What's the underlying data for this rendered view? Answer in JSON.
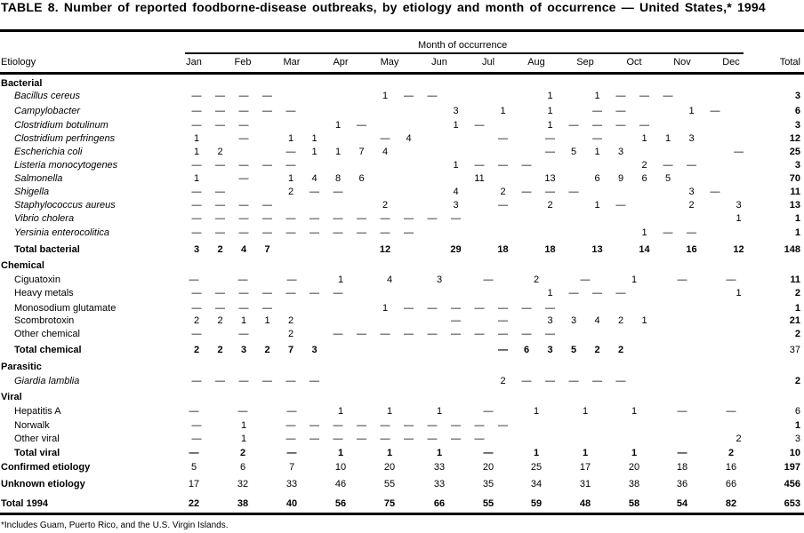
{
  "title": "TABLE 8. Number of reported foodborne-disease  outbreaks, by etiology  and month of occurrence — United States,* 1994",
  "header": {
    "group_label": "Month of occurrence",
    "etiology": "Etiology",
    "months": [
      "Jan",
      "Feb",
      "Mar",
      "Apr",
      "May",
      "Jun",
      "Jul",
      "Aug",
      "Sep",
      "Oct",
      "Nov",
      "Dec"
    ],
    "total": "Total"
  },
  "rows": [
    {
      "label": "Bacterial",
      "kind": "group"
    },
    {
      "label": "Bacillus cereus",
      "kind": "item",
      "italic": true,
      "cells": [
        [
          0,
          "—"
        ],
        [
          1,
          "—"
        ],
        [
          2,
          "—"
        ],
        [
          3,
          "—"
        ],
        [
          8,
          "1"
        ],
        [
          9,
          "—"
        ],
        [
          10,
          "—"
        ],
        [
          15,
          "1"
        ],
        [
          17,
          "1"
        ],
        [
          18,
          "—"
        ],
        [
          19,
          "—"
        ],
        [
          20,
          "—"
        ]
      ],
      "total": "3"
    },
    {
      "label": "Campylobacter",
      "kind": "item",
      "italic": true,
      "cells": [
        [
          0,
          "—"
        ],
        [
          1,
          "—"
        ],
        [
          2,
          "—"
        ],
        [
          3,
          "—"
        ],
        [
          4,
          "—"
        ],
        [
          11,
          "3"
        ],
        [
          13,
          "1"
        ],
        [
          15,
          "1"
        ],
        [
          17,
          "—"
        ],
        [
          18,
          "—"
        ],
        [
          21,
          "1"
        ],
        [
          22,
          "—"
        ]
      ],
      "total": "6"
    },
    {
      "label": "Clostridium botulinum",
      "kind": "item",
      "italic": true,
      "cells": [
        [
          0,
          "—"
        ],
        [
          1,
          "—"
        ],
        [
          2,
          "—"
        ],
        [
          6,
          "1"
        ],
        [
          7,
          "—"
        ],
        [
          11,
          "1"
        ],
        [
          12,
          "—"
        ],
        [
          15,
          "1"
        ],
        [
          16,
          "—"
        ],
        [
          17,
          "—"
        ],
        [
          18,
          "—"
        ],
        [
          19,
          "—"
        ]
      ],
      "total": "3"
    },
    {
      "label": "Clostridium perfringens",
      "kind": "item",
      "italic": true,
      "cells": [
        [
          0,
          "1"
        ],
        [
          2,
          "—"
        ],
        [
          4,
          "1"
        ],
        [
          5,
          "1"
        ],
        [
          8,
          "—"
        ],
        [
          9,
          "4"
        ],
        [
          13,
          "—"
        ],
        [
          15,
          "—"
        ],
        [
          17,
          "—"
        ],
        [
          19,
          "1"
        ],
        [
          20,
          "1"
        ],
        [
          21,
          "3"
        ]
      ],
      "total": "12"
    },
    {
      "label": "Escherichia coli",
      "kind": "item",
      "italic": true,
      "cells": [
        [
          0,
          "1"
        ],
        [
          1,
          "2"
        ],
        [
          4,
          "—"
        ],
        [
          5,
          "1"
        ],
        [
          6,
          "1"
        ],
        [
          7,
          "7"
        ],
        [
          8,
          "4"
        ],
        [
          15,
          "—"
        ],
        [
          16,
          "5"
        ],
        [
          17,
          "1"
        ],
        [
          18,
          "3"
        ],
        [
          23,
          "—"
        ]
      ],
      "total": "25"
    },
    {
      "label": "Listeria monocytogenes",
      "kind": "item",
      "italic": true,
      "cells": [
        [
          0,
          "—"
        ],
        [
          1,
          "—"
        ],
        [
          2,
          "—"
        ],
        [
          3,
          "—"
        ],
        [
          4,
          "—"
        ],
        [
          11,
          "1"
        ],
        [
          12,
          "—"
        ],
        [
          13,
          "—"
        ],
        [
          14,
          "—"
        ],
        [
          19,
          "2"
        ],
        [
          20,
          "—"
        ],
        [
          21,
          "—"
        ]
      ],
      "total": "3"
    },
    {
      "label": "Salmonella",
      "kind": "item",
      "italic": true,
      "cells": [
        [
          0,
          "1"
        ],
        [
          2,
          "—"
        ],
        [
          4,
          "1"
        ],
        [
          5,
          "4"
        ],
        [
          6,
          "8"
        ],
        [
          7,
          "6"
        ],
        [
          12,
          "11"
        ],
        [
          15,
          "13"
        ],
        [
          17,
          "6"
        ],
        [
          18,
          "9"
        ],
        [
          19,
          "6"
        ],
        [
          20,
          "5"
        ]
      ],
      "total": "70"
    },
    {
      "label": "Shigella",
      "kind": "item",
      "italic": true,
      "cells": [
        [
          0,
          "—"
        ],
        [
          1,
          "—"
        ],
        [
          4,
          "2"
        ],
        [
          5,
          "—"
        ],
        [
          6,
          "—"
        ],
        [
          11,
          "4"
        ],
        [
          13,
          "2"
        ],
        [
          14,
          "—"
        ],
        [
          15,
          "—"
        ],
        [
          16,
          "—"
        ],
        [
          21,
          "3"
        ],
        [
          22,
          "—"
        ]
      ],
      "total": "11"
    },
    {
      "label": "Staphylococcus aureus",
      "kind": "item",
      "italic": true,
      "cells": [
        [
          0,
          "—"
        ],
        [
          1,
          "—"
        ],
        [
          2,
          "—"
        ],
        [
          3,
          "—"
        ],
        [
          8,
          "2"
        ],
        [
          11,
          "3"
        ],
        [
          13,
          "—"
        ],
        [
          15,
          "2"
        ],
        [
          17,
          "1"
        ],
        [
          18,
          "—"
        ],
        [
          21,
          "2"
        ],
        [
          23,
          "3"
        ]
      ],
      "total": "13"
    },
    {
      "label": "Vibrio cholera",
      "kind": "item",
      "italic": true,
      "cells": [
        [
          0,
          "—"
        ],
        [
          1,
          "—"
        ],
        [
          2,
          "—"
        ],
        [
          3,
          "—"
        ],
        [
          4,
          "—"
        ],
        [
          5,
          "—"
        ],
        [
          6,
          "—"
        ],
        [
          7,
          "—"
        ],
        [
          8,
          "—"
        ],
        [
          9,
          "—"
        ],
        [
          10,
          "—"
        ],
        [
          11,
          "—"
        ],
        [
          23,
          "1"
        ]
      ],
      "total": "1"
    },
    {
      "label": "Yersinia enterocolitica",
      "kind": "item",
      "italic": true,
      "cells": [
        [
          0,
          "—"
        ],
        [
          1,
          "—"
        ],
        [
          2,
          "—"
        ],
        [
          3,
          "—"
        ],
        [
          4,
          "—"
        ],
        [
          5,
          "—"
        ],
        [
          6,
          "—"
        ],
        [
          7,
          "—"
        ],
        [
          8,
          "—"
        ],
        [
          9,
          "—"
        ],
        [
          19,
          "1"
        ],
        [
          20,
          "—"
        ],
        [
          21,
          "—"
        ]
      ],
      "total": "1"
    },
    {
      "label": "Total bacterial",
      "kind": "total",
      "bold_values": true,
      "cells": [
        [
          0,
          "3"
        ],
        [
          1,
          "2"
        ],
        [
          2,
          "4"
        ],
        [
          3,
          "7"
        ],
        [
          8,
          "12"
        ],
        [
          11,
          "29"
        ],
        [
          13,
          "18"
        ],
        [
          15,
          "18"
        ],
        [
          17,
          "13"
        ],
        [
          19,
          "14"
        ],
        [
          21,
          "16"
        ],
        [
          23,
          "12"
        ]
      ],
      "total": "148"
    },
    {
      "label": "Chemical",
      "kind": "group"
    },
    {
      "label": "Ciguatoxin",
      "kind": "item",
      "months": [
        "—",
        "—",
        "—",
        "1",
        "4",
        "3",
        "—",
        "2",
        "—",
        "1",
        "—",
        "—"
      ],
      "total": "11"
    },
    {
      "label": "Heavy metals",
      "kind": "item",
      "cells": [
        [
          0,
          "—"
        ],
        [
          1,
          "—"
        ],
        [
          2,
          "—"
        ],
        [
          3,
          "—"
        ],
        [
          4,
          "—"
        ],
        [
          5,
          "—"
        ],
        [
          6,
          "—"
        ],
        [
          15,
          "1"
        ],
        [
          16,
          "—"
        ],
        [
          17,
          "—"
        ],
        [
          18,
          "—"
        ],
        [
          23,
          "1"
        ]
      ],
      "total": "2"
    },
    {
      "label": "Monosodium glutamate",
      "kind": "item",
      "cells": [
        [
          0,
          "—"
        ],
        [
          1,
          "—"
        ],
        [
          2,
          "—"
        ],
        [
          3,
          "—"
        ],
        [
          8,
          "1"
        ],
        [
          9,
          "—"
        ],
        [
          10,
          "—"
        ],
        [
          11,
          "—"
        ],
        [
          12,
          "—"
        ],
        [
          13,
          "—"
        ],
        [
          14,
          "—"
        ],
        [
          15,
          "—"
        ]
      ],
      "total": "1"
    },
    {
      "label": "Scombrotoxin",
      "kind": "item",
      "cells": [
        [
          0,
          "2"
        ],
        [
          1,
          "2"
        ],
        [
          2,
          "1"
        ],
        [
          3,
          "1"
        ],
        [
          4,
          "2"
        ],
        [
          11,
          "—"
        ],
        [
          13,
          "—"
        ],
        [
          15,
          "3"
        ],
        [
          16,
          "3"
        ],
        [
          17,
          "4"
        ],
        [
          18,
          "2"
        ],
        [
          19,
          "1"
        ]
      ],
      "total": "21"
    },
    {
      "label": "Other chemical",
      "kind": "item",
      "cells": [
        [
          0,
          "—"
        ],
        [
          2,
          "—"
        ],
        [
          4,
          "2"
        ],
        [
          6,
          "—"
        ],
        [
          7,
          "—"
        ],
        [
          8,
          "—"
        ],
        [
          9,
          "—"
        ],
        [
          10,
          "—"
        ],
        [
          11,
          "—"
        ],
        [
          12,
          "—"
        ],
        [
          13,
          "—"
        ],
        [
          14,
          "—"
        ],
        [
          15,
          "—"
        ]
      ],
      "total": "2"
    },
    {
      "label": "Total chemical",
      "kind": "total",
      "bold_values": true,
      "total_plain": true,
      "cells": [
        [
          0,
          "2"
        ],
        [
          1,
          "2"
        ],
        [
          2,
          "3"
        ],
        [
          3,
          "2"
        ],
        [
          4,
          "7"
        ],
        [
          5,
          "3"
        ],
        [
          13,
          "—"
        ],
        [
          14,
          "6"
        ],
        [
          15,
          "3"
        ],
        [
          16,
          "5"
        ],
        [
          17,
          "2"
        ],
        [
          18,
          "2"
        ]
      ],
      "total": "37"
    },
    {
      "label": "Parasitic",
      "kind": "group"
    },
    {
      "label": "Giardia lamblia",
      "kind": "item",
      "italic": true,
      "cells": [
        [
          0,
          "—"
        ],
        [
          1,
          "—"
        ],
        [
          2,
          "—"
        ],
        [
          3,
          "—"
        ],
        [
          4,
          "—"
        ],
        [
          5,
          "—"
        ],
        [
          13,
          "2"
        ],
        [
          14,
          "—"
        ],
        [
          15,
          "—"
        ],
        [
          16,
          "—"
        ],
        [
          17,
          "—"
        ],
        [
          18,
          "—"
        ]
      ],
      "total": "2"
    },
    {
      "label": "Viral",
      "kind": "group"
    },
    {
      "label": "Hepatitis A",
      "kind": "item",
      "total_plain": true,
      "months": [
        "—",
        "—",
        "—",
        "1",
        "1",
        "1",
        "—",
        "1",
        "1",
        "1",
        "—",
        "—"
      ],
      "total": "6"
    },
    {
      "label": "Norwalk",
      "kind": "item",
      "cells": [
        [
          0,
          "—"
        ],
        [
          2,
          "1"
        ],
        [
          4,
          "—"
        ],
        [
          5,
          "—"
        ],
        [
          6,
          "—"
        ],
        [
          7,
          "—"
        ],
        [
          8,
          "—"
        ],
        [
          9,
          "—"
        ],
        [
          10,
          "—"
        ],
        [
          11,
          "—"
        ],
        [
          12,
          "—"
        ],
        [
          13,
          "—"
        ]
      ],
      "total": "1"
    },
    {
      "label": "Other viral",
      "kind": "item",
      "total_plain": true,
      "cells": [
        [
          0,
          "—"
        ],
        [
          2,
          "1"
        ],
        [
          4,
          "—"
        ],
        [
          5,
          "—"
        ],
        [
          6,
          "—"
        ],
        [
          7,
          "—"
        ],
        [
          8,
          "—"
        ],
        [
          9,
          "—"
        ],
        [
          10,
          "—"
        ],
        [
          11,
          "—"
        ],
        [
          12,
          "—"
        ],
        [
          23,
          "2"
        ]
      ],
      "total": "3"
    },
    {
      "label": "Total viral",
      "kind": "total",
      "bold_values": true,
      "months": [
        "—",
        "2",
        "—",
        "1",
        "1",
        "1",
        "—",
        "1",
        "1",
        "1",
        "—",
        "2"
      ],
      "total": "10"
    },
    {
      "label": "Confirmed etiology",
      "kind": "summary",
      "months": [
        "5",
        "6",
        "7",
        "10",
        "20",
        "33",
        "20",
        "25",
        "17",
        "20",
        "18",
        "16"
      ],
      "total": "197"
    },
    {
      "label": "Unknown etiology",
      "kind": "summary",
      "months": [
        "17",
        "32",
        "33",
        "46",
        "55",
        "33",
        "35",
        "34",
        "31",
        "38",
        "36",
        "66"
      ],
      "total": "456"
    },
    {
      "label": "Total 1994",
      "kind": "summary",
      "bold_values": true,
      "months": [
        "22",
        "38",
        "40",
        "56",
        "75",
        "66",
        "55",
        "59",
        "48",
        "58",
        "54",
        "82"
      ],
      "total": "653"
    }
  ],
  "footnote": "*Includes Guam, Puerto Rico, and the U.S. Virgin Islands."
}
